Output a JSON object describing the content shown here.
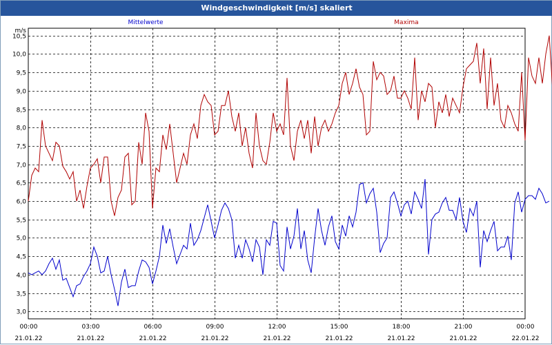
{
  "title": "Windgeschwindigkeit [m/s] skaliert",
  "chart_data": {
    "type": "line",
    "title": "Windgeschwindigkeit [m/s] skaliert",
    "ylabel": "m/s",
    "xlabel": "",
    "ylim": [
      2.8,
      10.7
    ],
    "yticks": [
      3.0,
      3.5,
      4.0,
      4.5,
      5.0,
      5.5,
      6.0,
      6.5,
      7.0,
      7.5,
      8.0,
      8.5,
      9.0,
      9.5,
      10.0,
      10.5
    ],
    "ytick_labels": [
      "3,0",
      "3,5",
      "4,0",
      "4,5",
      "5,0",
      "5,5",
      "6,0",
      "6,5",
      "7,0",
      "7,5",
      "8,0",
      "8,5",
      "9,0",
      "9,5",
      "10,0",
      "10,5"
    ],
    "xlim_minutes": [
      0,
      1440
    ],
    "xticks": [
      {
        "time": "00:00",
        "date": "21.01.22",
        "minute": 0
      },
      {
        "time": "03:00",
        "date": "21.01.22",
        "minute": 180
      },
      {
        "time": "06:00",
        "date": "21.01.22",
        "minute": 360
      },
      {
        "time": "09:00",
        "date": "21.01.22",
        "minute": 540
      },
      {
        "time": "12:00",
        "date": "21.01.22",
        "minute": 720
      },
      {
        "time": "15:00",
        "date": "21.01.22",
        "minute": 900
      },
      {
        "time": "18:00",
        "date": "21.01.22",
        "minute": 1080
      },
      {
        "time": "21:00",
        "date": "21.01.22",
        "minute": 1260
      },
      {
        "time": "00:00",
        "date": "22.01.22",
        "minute": 1440
      }
    ],
    "grid": true,
    "legend_placement": "top",
    "sample_interval_minutes": 10,
    "series": [
      {
        "name": "Mittelwerte",
        "color": "#0000cc",
        "values": [
          4.05,
          4.0,
          4.05,
          4.1,
          4.0,
          4.1,
          4.3,
          4.45,
          4.15,
          4.4,
          3.85,
          3.9,
          3.65,
          3.4,
          3.7,
          3.75,
          3.95,
          4.1,
          4.3,
          4.75,
          4.5,
          4.05,
          4.1,
          4.5,
          4.0,
          3.6,
          3.15,
          3.8,
          4.15,
          3.65,
          3.7,
          3.7,
          4.1,
          4.4,
          4.35,
          4.2,
          3.75,
          4.1,
          4.5,
          5.35,
          4.85,
          5.25,
          4.75,
          4.3,
          4.55,
          4.8,
          4.7,
          5.4,
          4.8,
          4.95,
          5.2,
          5.55,
          5.9,
          5.45,
          5.0,
          5.35,
          5.75,
          5.95,
          5.8,
          5.5,
          4.45,
          4.8,
          4.45,
          4.95,
          4.7,
          4.35,
          4.95,
          4.75,
          4.0,
          4.95,
          4.8,
          5.45,
          5.4,
          4.25,
          4.1,
          5.3,
          4.7,
          5.05,
          5.8,
          4.7,
          5.2,
          4.4,
          4.05,
          5.0,
          5.8,
          5.2,
          4.8,
          5.3,
          5.6,
          4.9,
          4.7,
          5.35,
          5.05,
          5.6,
          5.3,
          5.7,
          6.45,
          6.5,
          5.95,
          6.2,
          6.35,
          5.7,
          4.6,
          4.85,
          5.0,
          6.1,
          6.25,
          5.95,
          5.6,
          5.9,
          6.0,
          5.65,
          6.25,
          6.05,
          5.8,
          6.6,
          4.55,
          5.5,
          5.65,
          5.7,
          5.95,
          6.1,
          5.75,
          5.75,
          5.5,
          6.1,
          5.45,
          5.15,
          5.8,
          5.6,
          6.0,
          4.2,
          5.2,
          4.9,
          5.2,
          5.45,
          4.65,
          4.75,
          4.75,
          5.05,
          4.4,
          5.95,
          6.25,
          5.7,
          6.05,
          6.15,
          6.15,
          6.05,
          6.35,
          6.2,
          5.95,
          6.0
        ]
      },
      {
        "name": "Maxima",
        "color": "#b00000",
        "values": [
          6.0,
          6.7,
          6.9,
          6.8,
          8.2,
          7.5,
          7.3,
          7.1,
          7.6,
          7.5,
          6.95,
          6.8,
          6.6,
          6.8,
          6.0,
          6.3,
          5.8,
          6.4,
          6.9,
          7.0,
          7.15,
          6.5,
          7.2,
          7.2,
          6.0,
          5.6,
          6.1,
          6.3,
          7.2,
          7.3,
          5.9,
          6.0,
          7.6,
          7.0,
          8.4,
          7.9,
          5.8,
          6.9,
          6.8,
          7.8,
          7.4,
          8.1,
          7.3,
          6.5,
          6.9,
          7.3,
          7.0,
          7.8,
          8.1,
          7.7,
          8.6,
          8.9,
          8.7,
          8.6,
          7.8,
          7.9,
          8.6,
          8.6,
          9.0,
          8.3,
          7.9,
          8.4,
          7.5,
          8.0,
          7.3,
          6.9,
          8.4,
          7.5,
          7.1,
          7.0,
          7.6,
          8.4,
          7.9,
          8.1,
          7.8,
          9.35,
          7.5,
          7.1,
          7.9,
          8.2,
          7.7,
          8.2,
          7.3,
          8.3,
          7.5,
          8.0,
          8.2,
          7.9,
          8.1,
          8.4,
          8.6,
          9.2,
          9.5,
          8.9,
          9.2,
          9.6,
          9.1,
          8.9,
          7.8,
          7.9,
          9.8,
          9.3,
          9.5,
          9.4,
          8.9,
          9.0,
          9.4,
          8.8,
          8.8,
          9.0,
          8.8,
          8.5,
          9.9,
          8.2,
          9.0,
          8.7,
          9.2,
          9.1,
          8.0,
          8.7,
          8.4,
          8.9,
          8.3,
          8.8,
          8.6,
          8.4,
          9.1,
          9.6,
          9.7,
          9.8,
          10.3,
          9.2,
          10.15,
          8.5,
          9.9,
          8.6,
          9.2,
          8.2,
          8.0,
          8.6,
          8.4,
          8.1,
          7.9,
          9.5,
          7.65,
          9.9,
          9.4,
          9.2,
          9.9,
          9.2,
          10.0,
          10.5,
          9.0,
          8.6,
          10.2
        ]
      }
    ]
  }
}
